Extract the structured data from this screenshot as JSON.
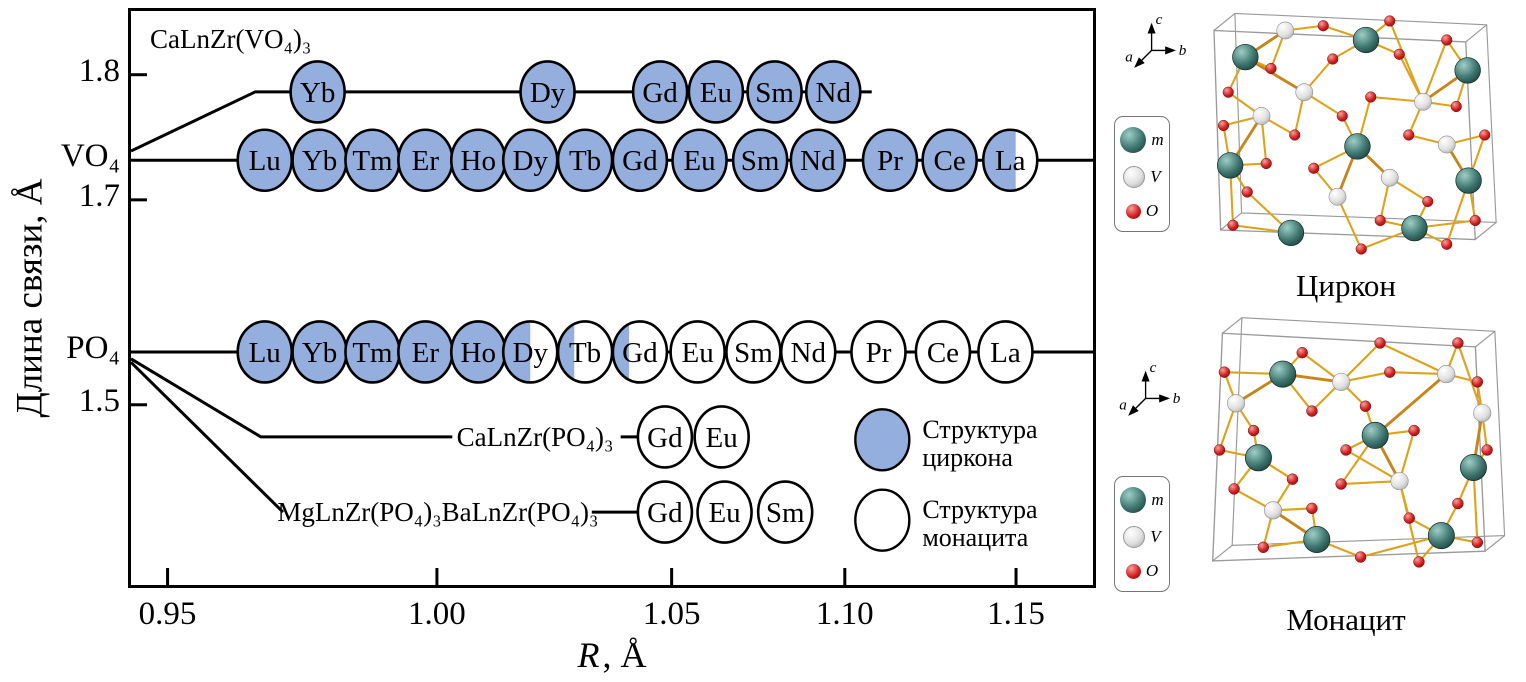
{
  "chart_data": {
    "type": "scatter",
    "title": "CaLnZr(VO₄)₃",
    "xlabel_italic": "R",
    "xlabel_rest": ", Å",
    "xlabel": "R, Å",
    "ylabel": "Длина связи, Å",
    "grid": false,
    "x_ticks": [
      {
        "label": "0.95",
        "xf": 3.8
      },
      {
        "label": "1.00",
        "xf": 31.8
      },
      {
        "label": "1.05",
        "xf": 56.2
      },
      {
        "label": "1.10",
        "xf": 74.2
      },
      {
        "label": "1.15",
        "xf": 92.0
      }
    ],
    "y_ticks": [
      {
        "label": "1.8",
        "yf": 11.1
      },
      {
        "label": "1.7",
        "yf": 32.9
      },
      {
        "label": "1.5",
        "yf": 68.6
      }
    ],
    "y_category_labels": [
      {
        "label": "VO₄",
        "yf": 26.0
      },
      {
        "label": "PO₄",
        "yf": 59.4
      }
    ],
    "fill_colors": {
      "zircon": "#94aedd",
      "monazite": "#ffffff"
    },
    "ionic_radius_estimates": {
      "Lu": 0.968,
      "Yb": 0.978,
      "Tm": 0.988,
      "Er": 0.998,
      "Ho": 1.009,
      "Dy": 1.02,
      "Tb": 1.032,
      "Gd": 1.043,
      "Eu": 1.058,
      "Sm": 1.076,
      "Nd": 1.092,
      "Pr": 1.113,
      "Ce": 1.131,
      "La": 1.148
    },
    "rows": [
      {
        "name": "CaLnZr(VO₄)₃ secondary VO₄ bond",
        "y_value_est": 1.79,
        "yf": 14.1,
        "line": [
          [
            0,
            24.4
          ],
          [
            12.9,
            14.1
          ],
          [
            77.0,
            14.1
          ]
        ],
        "points": [
          {
            "el": "Yb",
            "xf": 19.4,
            "fill": "zircon"
          },
          {
            "el": "Dy",
            "xf": 43.3,
            "fill": "zircon"
          },
          {
            "el": "Gd",
            "xf": 55.0,
            "fill": "zircon"
          },
          {
            "el": "Eu",
            "xf": 60.8,
            "fill": "zircon"
          },
          {
            "el": "Sm",
            "xf": 66.9,
            "fill": "zircon"
          },
          {
            "el": "Nd",
            "xf": 73.0,
            "fill": "zircon"
          }
        ]
      },
      {
        "name": "VO₄ main bond-length row",
        "y_value_est": 1.73,
        "yf": 26.0,
        "line": [
          [
            0,
            26.0
          ],
          [
            100,
            26.0
          ]
        ],
        "points": [
          {
            "el": "Lu",
            "xf": 13.9,
            "fill": "zircon"
          },
          {
            "el": "Yb",
            "xf": 19.6,
            "fill": "zircon"
          },
          {
            "el": "Tm",
            "xf": 25.1,
            "fill": "zircon"
          },
          {
            "el": "Er",
            "xf": 30.6,
            "fill": "zircon"
          },
          {
            "el": "Ho",
            "xf": 36.1,
            "fill": "zircon"
          },
          {
            "el": "Dy",
            "xf": 41.5,
            "fill": "zircon"
          },
          {
            "el": "Tb",
            "xf": 47.2,
            "fill": "zircon"
          },
          {
            "el": "Gd",
            "xf": 52.9,
            "fill": "zircon"
          },
          {
            "el": "Eu",
            "xf": 59.1,
            "fill": "zircon"
          },
          {
            "el": "Sm",
            "xf": 65.4,
            "fill": "zircon"
          },
          {
            "el": "Nd",
            "xf": 71.4,
            "fill": "zircon"
          },
          {
            "el": "Pr",
            "xf": 78.9,
            "fill": "zircon"
          },
          {
            "el": "Ce",
            "xf": 85.1,
            "fill": "zircon"
          },
          {
            "el": "La",
            "xf": 91.4,
            "fill": "half",
            "blue_fraction": 0.6
          }
        ]
      },
      {
        "name": "PO₄ main bond-length row",
        "y_value_est": 1.55,
        "yf": 59.4,
        "line": [
          [
            0,
            59.4
          ],
          [
            100,
            59.4
          ]
        ],
        "points": [
          {
            "el": "Lu",
            "xf": 13.9,
            "fill": "zircon"
          },
          {
            "el": "Yb",
            "xf": 19.6,
            "fill": "zircon"
          },
          {
            "el": "Tm",
            "xf": 25.1,
            "fill": "zircon"
          },
          {
            "el": "Er",
            "xf": 30.6,
            "fill": "zircon"
          },
          {
            "el": "Ho",
            "xf": 36.1,
            "fill": "zircon"
          },
          {
            "el": "Dy",
            "xf": 41.5,
            "fill": "half",
            "blue_fraction": 0.5
          },
          {
            "el": "Tb",
            "xf": 47.2,
            "fill": "half",
            "blue_fraction": 0.3
          },
          {
            "el": "Gd",
            "xf": 52.9,
            "fill": "half",
            "blue_fraction": 0.3
          },
          {
            "el": "Eu",
            "xf": 58.9,
            "fill": "monazite"
          },
          {
            "el": "Sm",
            "xf": 64.7,
            "fill": "monazite"
          },
          {
            "el": "Nd",
            "xf": 70.4,
            "fill": "monazite"
          },
          {
            "el": "Pr",
            "xf": 77.7,
            "fill": "monazite"
          },
          {
            "el": "Ce",
            "xf": 84.4,
            "fill": "monazite"
          },
          {
            "el": "La",
            "xf": 90.9,
            "fill": "monazite"
          }
        ]
      },
      {
        "name": "CaLnZr(PO₄)₃ row",
        "y_value_est": 1.47,
        "yf": 74.2,
        "label": "CaLnZr(PO₄)₃",
        "label_xf": 42.0,
        "line": [
          [
            0,
            60.6
          ],
          [
            13.5,
            74.2
          ],
          [
            33.4,
            74.2
          ]
        ],
        "line2": [
          [
            50.9,
            74.2
          ],
          [
            52.8,
            74.2
          ]
        ],
        "points": [
          {
            "el": "Gd",
            "xf": 55.5,
            "fill": "monazite"
          },
          {
            "el": "Eu",
            "xf": 61.4,
            "fill": "monazite"
          }
        ]
      },
      {
        "name": "MgLnZr(PO₄)₃ / BaLnZr(PO₄)₃ row",
        "y_value_est": 1.42,
        "yf": 87.3,
        "label": "MgLnZr(PO₄)₃BaLnZr(PO₄)₃",
        "label_xf": 31.9,
        "line": [
          [
            0,
            61.2
          ],
          [
            15.8,
            87.3
          ]
        ],
        "line2": [
          [
            47.9,
            87.3
          ],
          [
            52.8,
            87.3
          ]
        ],
        "points": [
          {
            "el": "Gd",
            "xf": 55.5,
            "fill": "monazite"
          },
          {
            "el": "Eu",
            "xf": 61.7,
            "fill": "monazite"
          },
          {
            "el": "Sm",
            "xf": 68.0,
            "fill": "monazite"
          }
        ]
      }
    ],
    "legend": {
      "xf": 78.1,
      "items": [
        {
          "fill": "zircon",
          "lines": [
            "Структура",
            "циркона"
          ],
          "yf": 74.7
        },
        {
          "fill": "monazite",
          "lines": [
            "Структура",
            "монацита"
          ],
          "yf": 88.7
        }
      ]
    }
  },
  "structures": [
    {
      "caption": "Циркон",
      "axes": {
        "up": "c",
        "left": "a",
        "right": "b"
      },
      "legend": [
        {
          "label": "m",
          "color": "#3d746e"
        },
        {
          "label": "V",
          "color": "#e8e8e8"
        },
        {
          "label": "O",
          "color": "#d21f1f"
        }
      ]
    },
    {
      "caption": "Монацит",
      "axes": {
        "up": "c",
        "left": "a",
        "right": "b"
      },
      "legend": [
        {
          "label": "m",
          "color": "#3d746e"
        },
        {
          "label": "V",
          "color": "#e8e8e8"
        },
        {
          "label": "O",
          "color": "#d21f1f"
        }
      ]
    }
  ]
}
